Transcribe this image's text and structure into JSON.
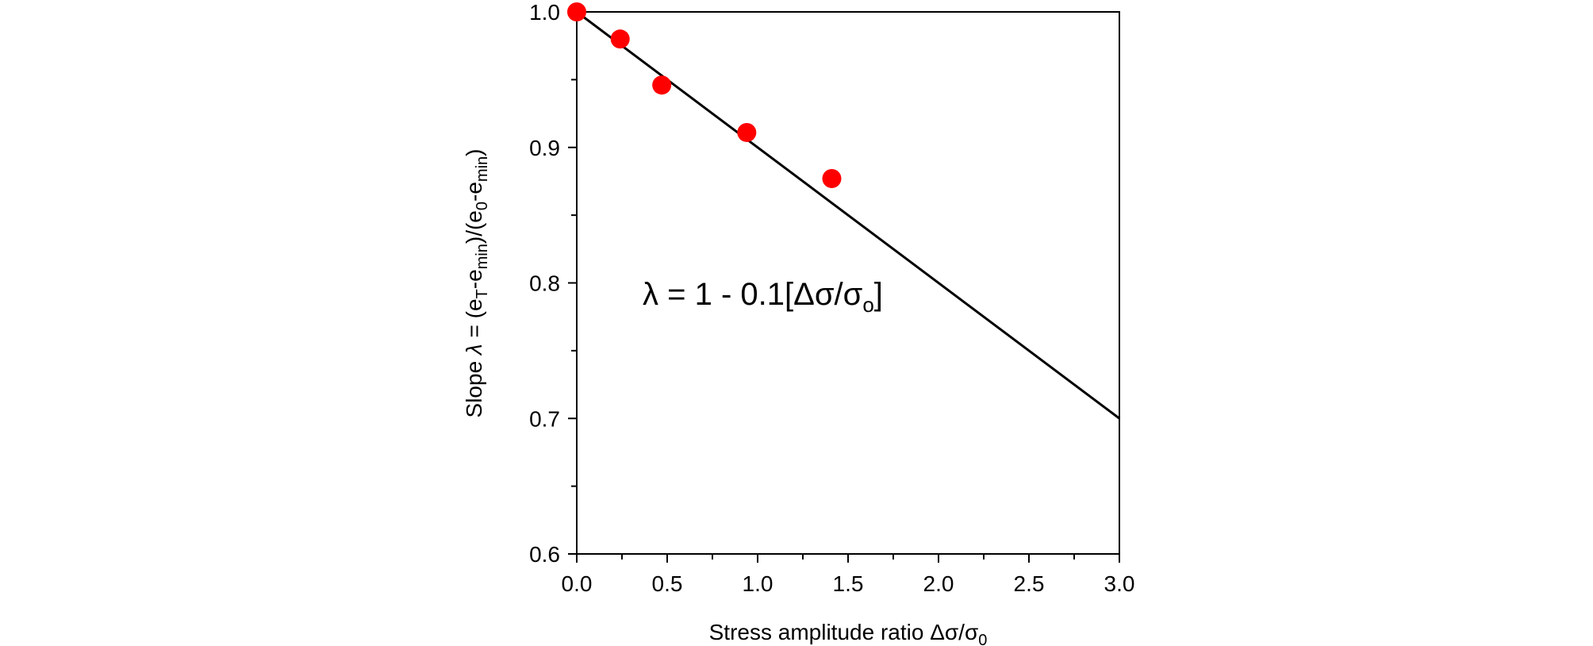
{
  "chart_data": {
    "type": "scatter",
    "title": "",
    "xlim": [
      0,
      3.0
    ],
    "ylim": [
      0.6,
      1.0
    ],
    "x_ticks": [
      "0.0",
      "0.5",
      "1.0",
      "1.5",
      "2.0",
      "2.5",
      "3.0"
    ],
    "y_ticks": [
      "0.6",
      "0.7",
      "0.8",
      "0.9",
      "1.0"
    ],
    "xlabel": {
      "main": "Stress amplitude ratio Δσ/σ",
      "sub": "0"
    },
    "ylabel": {
      "prefix": "Slope ",
      "lambda": "λ",
      "eq": " = (e",
      "sub1": "T",
      "part2": "-e",
      "sub2": "min",
      "part3": ")/(e",
      "sub3": "0",
      "part4": "-e",
      "sub4": "min",
      "part5": ")"
    },
    "annotation": {
      "main": "λ = 1 - 0.1[Δσ/σ",
      "sub": "o",
      "close": "]"
    },
    "grid": false,
    "legend": "none",
    "series": [
      {
        "type": "scatter",
        "color": "#ff0000",
        "points": [
          {
            "x": 0.0,
            "y": 1.0
          },
          {
            "x": 0.24,
            "y": 0.98
          },
          {
            "x": 0.47,
            "y": 0.946
          },
          {
            "x": 0.94,
            "y": 0.911
          },
          {
            "x": 1.41,
            "y": 0.877
          }
        ]
      },
      {
        "type": "line",
        "color": "#000000",
        "points": [
          {
            "x": 0.0,
            "y": 1.0
          },
          {
            "x": 3.0,
            "y": 0.7
          }
        ]
      }
    ]
  }
}
